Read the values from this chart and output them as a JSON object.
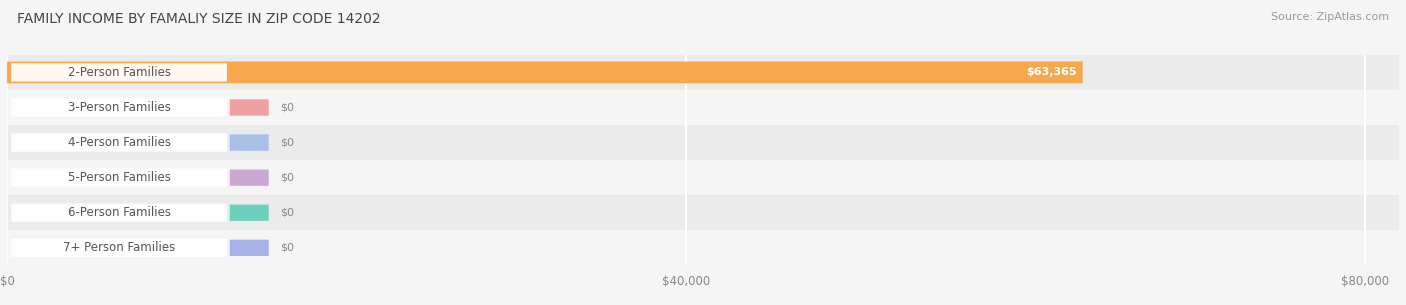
{
  "title": "FAMILY INCOME BY FAMALIY SIZE IN ZIP CODE 14202",
  "source": "Source: ZipAtlas.com",
  "categories": [
    "2-Person Families",
    "3-Person Families",
    "4-Person Families",
    "5-Person Families",
    "6-Person Families",
    "7+ Person Families"
  ],
  "values": [
    63365,
    0,
    0,
    0,
    0,
    0
  ],
  "bar_colors": [
    "#f5a84e",
    "#f0a0a0",
    "#a8bfe8",
    "#c9a8d4",
    "#6ecfbe",
    "#a8b0e8"
  ],
  "value_labels": [
    "$63,365",
    "$0",
    "$0",
    "$0",
    "$0",
    "$0"
  ],
  "xlim": [
    0,
    82000
  ],
  "xticks": [
    0,
    40000,
    80000
  ],
  "xticklabels": [
    "$0",
    "$40,000",
    "$80,000"
  ],
  "background_color": "#f5f5f5",
  "row_bg_even": "#ebebeb",
  "row_bg_odd": "#f5f5f5",
  "title_fontsize": 10,
  "source_fontsize": 8,
  "label_fontsize": 8.5,
  "value_fontsize": 8,
  "tick_fontsize": 8.5
}
